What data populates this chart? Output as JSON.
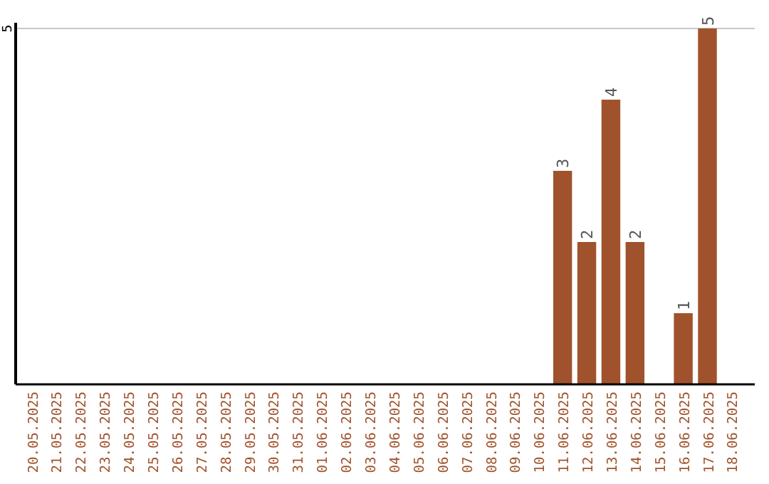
{
  "chart_data": {
    "type": "bar",
    "categories": [
      "20.05.2025",
      "21.05.2025",
      "22.05.2025",
      "23.05.2025",
      "24.05.2025",
      "25.05.2025",
      "26.05.2025",
      "27.05.2025",
      "28.05.2025",
      "29.05.2025",
      "30.05.2025",
      "31.05.2025",
      "01.06.2025",
      "02.06.2025",
      "03.06.2025",
      "04.06.2025",
      "05.06.2025",
      "06.06.2025",
      "07.06.2025",
      "08.06.2025",
      "09.06.2025",
      "10.06.2025",
      "11.06.2025",
      "12.06.2025",
      "13.06.2025",
      "14.06.2025",
      "15.06.2025",
      "16.06.2025",
      "17.06.2025",
      "18.06.2025"
    ],
    "values": [
      null,
      null,
      null,
      null,
      null,
      null,
      null,
      null,
      null,
      null,
      null,
      null,
      null,
      null,
      null,
      null,
      null,
      null,
      null,
      null,
      null,
      null,
      3,
      2,
      4,
      2,
      null,
      1,
      5,
      null
    ],
    "data_labels": true,
    "color": "#a0522d",
    "ylim": [
      0,
      5
    ],
    "ref_lines": [
      {
        "axis": "y",
        "value": 5,
        "label": "5",
        "color": "#c8c8c8"
      }
    ]
  }
}
